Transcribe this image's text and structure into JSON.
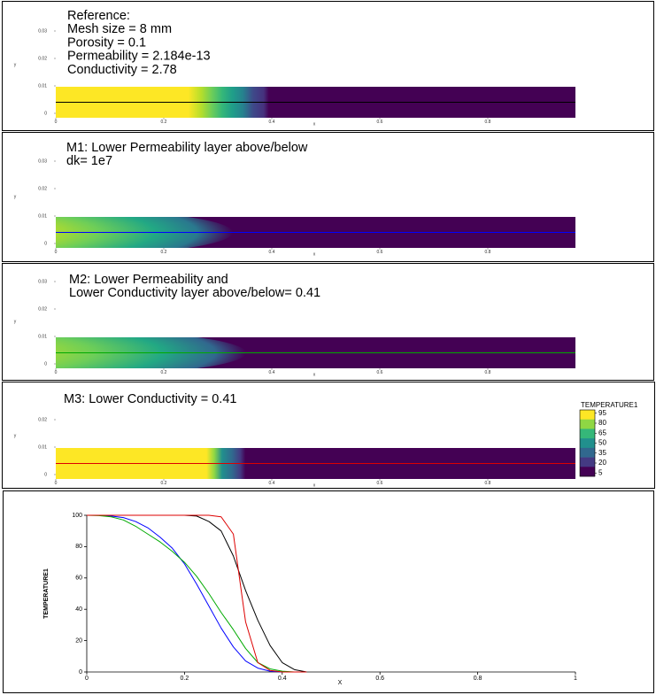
{
  "panels": [
    {
      "lines": [
        "Reference:",
        "Mesh size = 8 mm",
        "Porosity = 0.1",
        "Permeability =  2.184e-13",
        "Conductivity = 2.78"
      ],
      "x_label": "x",
      "y_label": "y",
      "xticks": [
        0,
        0.2,
        0.4,
        0.6,
        0.8
      ],
      "yticks": [
        0,
        0.01,
        0.02,
        0.03
      ],
      "line_color": "#000000"
    },
    {
      "lines": [
        "M1: Lower Permeability layer above/below",
        "dk= 1e7"
      ],
      "x_label": "x",
      "y_label": "y",
      "xticks": [
        0,
        0.2,
        0.4,
        0.6,
        0.8
      ],
      "yticks": [
        0,
        0.01,
        0.02,
        0.03
      ],
      "line_color": "#0000ff"
    },
    {
      "lines": [
        "M2: Lower Permeability and",
        "Lower Conductivity layer above/below= 0.41"
      ],
      "x_label": "x",
      "y_label": "y",
      "xticks": [
        0,
        0.2,
        0.4,
        0.6,
        0.8
      ],
      "yticks": [
        0,
        0.01,
        0.02,
        0.03
      ],
      "line_color": "#00aa00"
    },
    {
      "lines": [
        "M3: Lower Conductivity = 0.41"
      ],
      "x_label": "x",
      "y_label": "y",
      "xticks": [
        0,
        0.2,
        0.4,
        0.6,
        0.8
      ],
      "yticks": [
        0,
        0.01,
        0.02
      ],
      "line_color": "#dd0000"
    }
  ],
  "colorbar": {
    "title": "TEMPERATURE1",
    "ticks": [
      95,
      80,
      65,
      50,
      35,
      20,
      5
    ],
    "lim": [
      0,
      100
    ],
    "colors": [
      "#fde725",
      "#8fd744",
      "#35b779",
      "#21908d",
      "#31688e",
      "#443a83",
      "#440154"
    ]
  },
  "chart_data": {
    "type": "line",
    "x_label": "X",
    "y_label": "TEMPERATURE1",
    "x": [
      0,
      0.025,
      0.05,
      0.075,
      0.1,
      0.125,
      0.15,
      0.175,
      0.2,
      0.225,
      0.25,
      0.275,
      0.3,
      0.325,
      0.35,
      0.375,
      0.4,
      0.425,
      0.45
    ],
    "series": [
      {
        "color": "#000000",
        "values": [
          100,
          100,
          100,
          100,
          100,
          100,
          100,
          100,
          100,
          99.5,
          96,
          90,
          74,
          52,
          33,
          17,
          6,
          1.5,
          0
        ]
      },
      {
        "color": "#0000ff",
        "values": [
          100,
          100,
          99.5,
          98.5,
          96,
          92,
          86,
          79,
          69,
          56,
          42,
          28,
          16,
          7,
          2.5,
          0.5,
          0,
          0,
          0
        ]
      },
      {
        "color": "#00aa00",
        "values": [
          100,
          99.8,
          99,
          97,
          93,
          88,
          83,
          77,
          70,
          61,
          50,
          38,
          27,
          15,
          6,
          2,
          0.5,
          0,
          0
        ]
      },
      {
        "color": "#dd0000",
        "values": [
          100,
          100,
          100,
          100,
          100,
          100,
          100,
          100,
          100,
          100,
          100,
          99,
          88,
          32,
          6,
          1,
          0,
          0,
          0
        ]
      }
    ],
    "xlim": [
      0,
      1
    ],
    "ylim": [
      0,
      100
    ],
    "xticks": [
      0,
      0.2,
      0.4,
      0.6,
      0.8,
      1
    ],
    "yticks": [
      0,
      20,
      40,
      60,
      80,
      100
    ]
  }
}
